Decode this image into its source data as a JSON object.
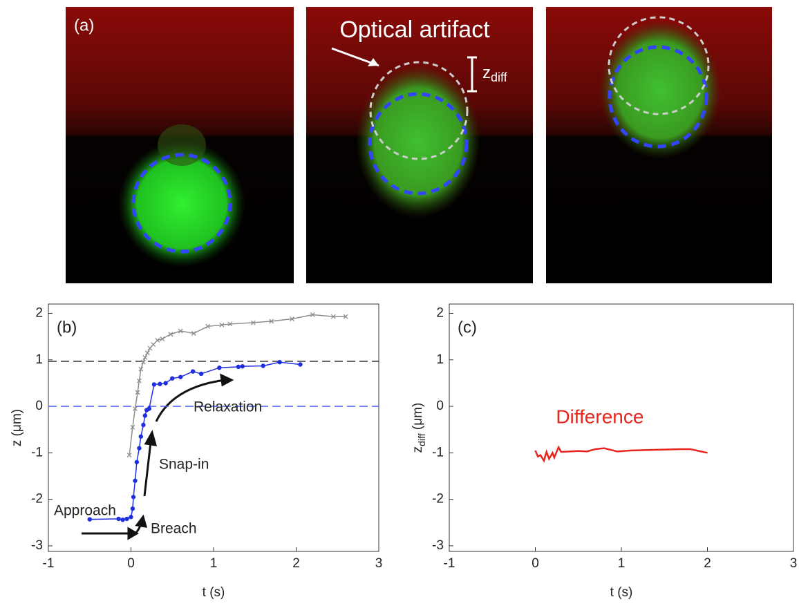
{
  "images": {
    "label": "(a)",
    "annotation": "Optical artifact",
    "zdiff_label": [
      "z",
      "diff"
    ]
  },
  "chart_data": [
    {
      "type": "line",
      "label": "(b)",
      "xlabel": "t (s)",
      "ylabel": "z (μm)",
      "xlim": [
        -1,
        3
      ],
      "xticks": [
        -1,
        0,
        1,
        2,
        3
      ],
      "ylim": [
        -3.12,
        2.2
      ],
      "yticks": [
        -3,
        -2,
        -1,
        0,
        1,
        2
      ],
      "hlines": [
        {
          "value": 0.97,
          "color": "#222222"
        },
        {
          "value": 0,
          "color": "#4a5ff0"
        }
      ],
      "annotations": [
        "Approach",
        "Breach",
        "Snap-in",
        "Relaxation"
      ],
      "series": [
        {
          "color": "#8c8c8c",
          "marker": "x",
          "x": [
            -0.02,
            0.02,
            0.05,
            0.08,
            0.1,
            0.12,
            0.15,
            0.17,
            0.2,
            0.23,
            0.27,
            0.32,
            0.38,
            0.48,
            0.6,
            0.76,
            0.93,
            1.1,
            1.2,
            1.48,
            1.7,
            1.95,
            2.2,
            2.45,
            2.6
          ],
          "values": [
            -1.05,
            -0.45,
            -0.05,
            0.3,
            0.55,
            0.8,
            0.95,
            1.05,
            1.15,
            1.25,
            1.33,
            1.42,
            1.45,
            1.55,
            1.62,
            1.57,
            1.72,
            1.75,
            1.77,
            1.8,
            1.83,
            1.88,
            1.97,
            1.93,
            1.93
          ]
        },
        {
          "color": "#1f2fe0",
          "marker": "dot",
          "x": [
            -0.5,
            -0.15,
            -0.1,
            -0.05,
            0,
            0.02,
            0.03,
            0.05,
            0.07,
            0.1,
            0.12,
            0.15,
            0.17,
            0.19,
            0.22,
            0.28,
            0.35,
            0.42,
            0.5,
            0.6,
            0.75,
            0.85,
            1.07,
            1.3,
            1.35,
            1.6,
            1.8,
            2.05
          ],
          "values": [
            -2.43,
            -2.42,
            -2.44,
            -2.42,
            -2.38,
            -2.2,
            -1.95,
            -1.6,
            -1.2,
            -0.9,
            -0.65,
            -0.4,
            -0.2,
            -0.08,
            -0.05,
            0.47,
            0.48,
            0.5,
            0.6,
            0.63,
            0.75,
            0.7,
            0.83,
            0.85,
            0.86,
            0.87,
            0.95,
            0.9
          ]
        }
      ]
    },
    {
      "type": "line",
      "label": "(c)",
      "xlabel": "t (s)",
      "ylabel": [
        "z",
        "diff",
        " (μm)"
      ],
      "xlim": [
        -1,
        3
      ],
      "xticks": [
        -1,
        0,
        1,
        2,
        3
      ],
      "ylim": [
        -3.12,
        2.2
      ],
      "yticks": [
        -3,
        -2,
        -1,
        0,
        1,
        2
      ],
      "series": [
        {
          "name": "Difference",
          "color": "#e8241c",
          "marker": "none",
          "x": [
            0,
            0.03,
            0.06,
            0.1,
            0.13,
            0.16,
            0.2,
            0.22,
            0.27,
            0.3,
            0.4,
            0.5,
            0.6,
            0.7,
            0.8,
            0.95,
            1.1,
            1.3,
            1.5,
            1.7,
            1.8,
            2.0
          ],
          "values": [
            -0.95,
            -1.08,
            -1.05,
            -1.17,
            -0.98,
            -1.13,
            -1.0,
            -1.1,
            -0.88,
            -0.98,
            -0.97,
            -0.96,
            -0.97,
            -0.92,
            -0.9,
            -0.97,
            -0.95,
            -0.94,
            -0.93,
            -0.92,
            -0.92,
            -1.0
          ]
        }
      ]
    }
  ]
}
